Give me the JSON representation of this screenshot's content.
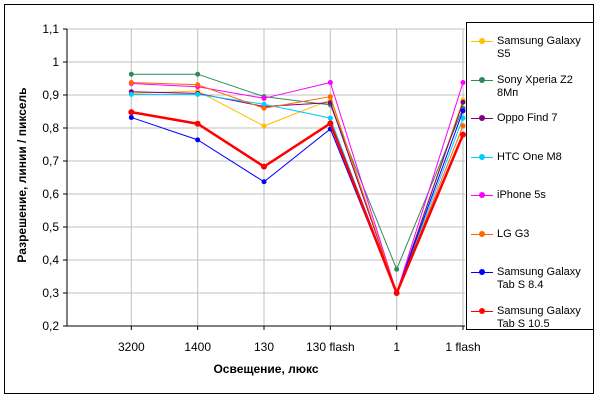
{
  "chart_data": {
    "type": "line",
    "title": "",
    "xlabel": "Освещение, люкс",
    "ylabel": "Разрешение, линии / пиксель",
    "categories": [
      "3200",
      "1400",
      "130",
      "130 flash",
      "1",
      "1 flash"
    ],
    "ylim": [
      0.2,
      1.1
    ],
    "yticks": [
      "0,2",
      "0,3",
      "0,4",
      "0,5",
      "0,6",
      "0,7",
      "0,8",
      "0,9",
      "1",
      "1,1"
    ],
    "grid": true,
    "legend_position": "right",
    "series": [
      {
        "name": "Samsung Galaxy S5",
        "color": "#FFC000",
        "values": [
          0.905,
          0.912,
          0.806,
          0.885,
          0.3,
          0.885
        ]
      },
      {
        "name": "Sony Xperia Z2 8Мп",
        "color": "#2E8B57",
        "values": [
          0.963,
          0.963,
          0.895,
          0.87,
          0.372,
          0.86
        ]
      },
      {
        "name": "Oppo Find 7",
        "color": "#800080",
        "values": [
          0.91,
          0.905,
          0.865,
          0.877,
          0.3,
          0.878
        ]
      },
      {
        "name": "HTC One M8",
        "color": "#00CCFF",
        "values": [
          0.902,
          0.902,
          0.872,
          0.83,
          0.3,
          0.83
        ]
      },
      {
        "name": "iPhone 5s",
        "color": "#FF00FF",
        "values": [
          0.935,
          0.925,
          0.89,
          0.938,
          0.3,
          0.938
        ]
      },
      {
        "name": "LG G3",
        "color": "#FF6600",
        "values": [
          0.938,
          0.931,
          0.86,
          0.895,
          0.3,
          0.807
        ]
      },
      {
        "name": "Samsung Galaxy Tab S 8.4",
        "color": "#0000FF",
        "values": [
          0.832,
          0.764,
          0.637,
          0.797,
          0.3,
          0.852
        ]
      },
      {
        "name": "Samsung Galaxy Tab S 10.5",
        "color": "#FF0000",
        "values": [
          0.848,
          0.813,
          0.683,
          0.814,
          0.3,
          0.78
        ]
      }
    ]
  }
}
